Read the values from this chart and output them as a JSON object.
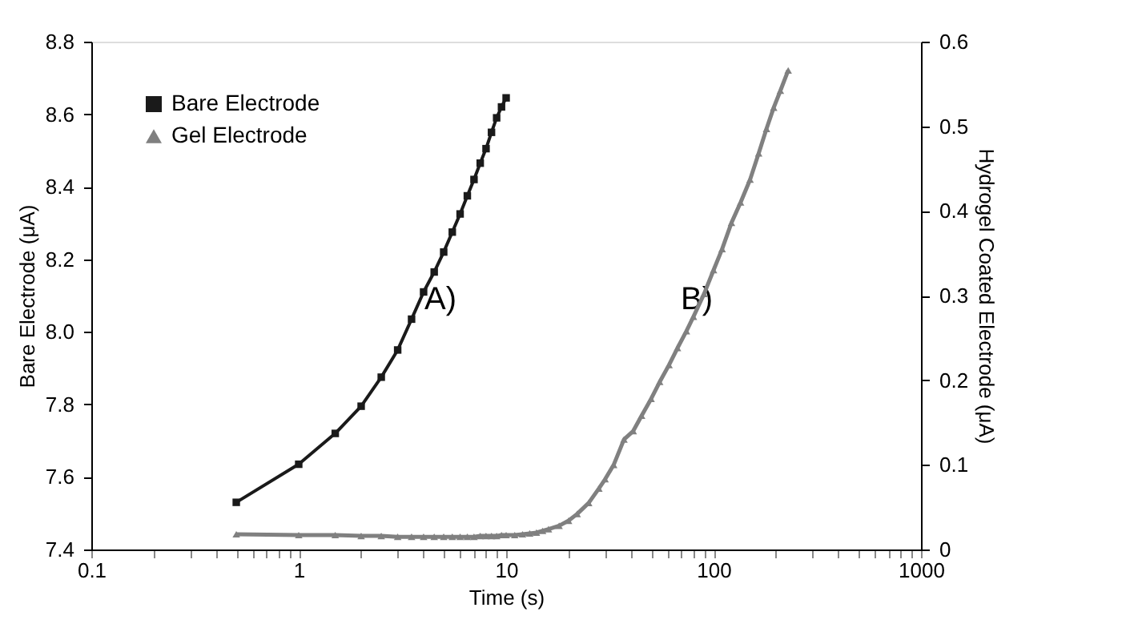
{
  "chart_data": {
    "type": "line",
    "xlabel": "Time (s)",
    "ylabel": "Bare Electrode (μA)",
    "y2label": "Hydrogel  Coated Electrode (μA)",
    "log": "x",
    "grid": false,
    "legend": "top left",
    "xlim": [
      0.1,
      1000
    ],
    "xticks": [
      0.1,
      {
        "value": 0.2,
        "label": null
      },
      {
        "value": 0.3,
        "label": null
      },
      {
        "value": 0.4,
        "label": null
      },
      {
        "value": 0.5,
        "label": null
      },
      {
        "value": 0.6,
        "label": null
      },
      {
        "value": 0.7,
        "label": null
      },
      {
        "value": 0.8,
        "label": null
      },
      {
        "value": 0.9,
        "label": null
      },
      1,
      {
        "value": 2,
        "label": null
      },
      {
        "value": 3,
        "label": null
      },
      {
        "value": 4,
        "label": null
      },
      {
        "value": 5,
        "label": null
      },
      {
        "value": 6,
        "label": null
      },
      {
        "value": 7,
        "label": null
      },
      {
        "value": 8,
        "label": null
      },
      {
        "value": 9,
        "label": null
      },
      10,
      {
        "value": 20,
        "label": null
      },
      {
        "value": 30,
        "label": null
      },
      {
        "value": 40,
        "label": null
      },
      {
        "value": 50,
        "label": null
      },
      {
        "value": 60,
        "label": null
      },
      {
        "value": 70,
        "label": null
      },
      {
        "value": 80,
        "label": null
      },
      {
        "value": 90,
        "label": null
      },
      100,
      {
        "value": 200,
        "label": null
      },
      {
        "value": 300,
        "label": null
      },
      {
        "value": 400,
        "label": null
      },
      {
        "value": 500,
        "label": null
      },
      {
        "value": 600,
        "label": null
      },
      {
        "value": 700,
        "label": null
      },
      {
        "value": 800,
        "label": null
      },
      {
        "value": 900,
        "label": null
      },
      1000
    ],
    "ylim": [
      7.4,
      8.8
    ],
    "yticks": [
      7.4,
      7.6,
      7.8,
      {
        "value": 8,
        "label": "8.0"
      },
      8.2,
      8.4,
      8.6,
      8.8
    ],
    "y2lim": [
      0,
      0.6
    ],
    "y2ticks": [
      0,
      0.1,
      0.2,
      0.3,
      0.4,
      0.5,
      0.6
    ],
    "annotations": [
      "A)",
      "B)"
    ],
    "series": [
      {
        "name": "Bare Electrode",
        "color": "#1a1a1a",
        "marker": "square",
        "x": [
          0.5,
          1,
          1.5,
          2,
          2.5,
          3,
          3.5,
          4,
          4.5,
          5,
          5.5,
          6,
          6.5,
          7,
          7.5,
          8,
          8.5,
          9,
          9.5,
          10
        ],
        "values": [
          7.53,
          7.635,
          7.72,
          7.795,
          7.875,
          7.95,
          8.035,
          8.11,
          8.165,
          8.22,
          8.275,
          8.325,
          8.375,
          8.42,
          8.465,
          8.505,
          8.55,
          8.59,
          8.62,
          8.645
        ]
      },
      {
        "name": "Gel Electrode",
        "color": "#808080",
        "marker": "triangle",
        "axis": "y2",
        "x": [
          0.5,
          1,
          1.5,
          2,
          2.5,
          3,
          3.5,
          4,
          4.5,
          5,
          5.5,
          6,
          6.5,
          7,
          7.5,
          8,
          8.5,
          9,
          9.5,
          10,
          11,
          12,
          13,
          14,
          15,
          16,
          18,
          20,
          22,
          25,
          28,
          30,
          33,
          37,
          41,
          45,
          50,
          55,
          61,
          67,
          74,
          80,
          90,
          100,
          110,
          122,
          135,
          150,
          165,
          180,
          195,
          210,
          229
        ],
        "values": [
          0.018,
          0.017,
          0.017,
          0.016,
          0.016,
          0.015,
          0.015,
          0.015,
          0.015,
          0.015,
          0.015,
          0.015,
          0.015,
          0.015,
          0.016,
          0.016,
          0.016,
          0.016,
          0.017,
          0.017,
          0.017,
          0.018,
          0.019,
          0.02,
          0.022,
          0.024,
          0.028,
          0.034,
          0.042,
          0.055,
          0.072,
          0.083,
          0.1,
          0.13,
          0.14,
          0.158,
          0.178,
          0.198,
          0.218,
          0.238,
          0.258,
          0.275,
          0.302,
          0.33,
          0.355,
          0.386,
          0.41,
          0.437,
          0.468,
          0.497,
          0.522,
          0.542,
          0.566
        ]
      }
    ]
  }
}
